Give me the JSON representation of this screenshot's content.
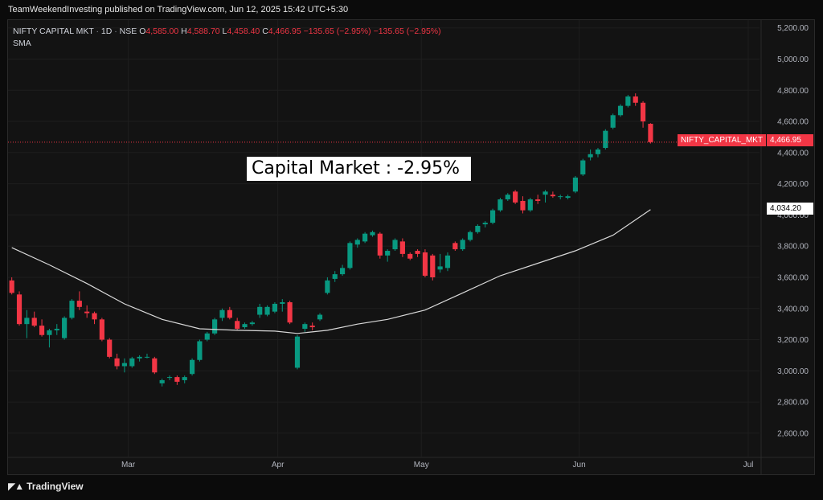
{
  "header": {
    "published": "TeamWeekendInvesting published on TradingView.com, Jun 12, 2025 15:42 UTC+5:30"
  },
  "legend": {
    "symbol": "NIFTY CAPITAL MKT",
    "interval": "1D",
    "exchange": "NSE",
    "open_label": "O",
    "open": "4,585.00",
    "high_label": "H",
    "high": "4,588.70",
    "low_label": "L",
    "low": "4,458.40",
    "close_label": "C",
    "close": "4,466.95",
    "change": "−135.65 (−2.95%)",
    "change2": "−135.65 (−2.95%)",
    "sma_label": "SMA"
  },
  "annotation": {
    "text": "Capital Market : -2.95%"
  },
  "price_tags": {
    "symbol_tag": "NIFTY_CAPITAL_MKT",
    "last_price": "4,466.95",
    "sma_value": "4,034.20"
  },
  "footer": {
    "brand": "TradingView"
  },
  "colors": {
    "up": "#089981",
    "down": "#f23645",
    "sma": "#d9d9d9",
    "grid": "#1e1e1e",
    "axis_text": "#b2b5be"
  },
  "chart_data": {
    "type": "candlestick",
    "title": "",
    "ylim": [
      2450,
      5250
    ],
    "y_ticks": [
      2600,
      2800,
      3000,
      3200,
      3400,
      3600,
      3800,
      4000,
      4200,
      4400,
      4600,
      4800,
      5000,
      5200
    ],
    "y_tick_labels": [
      "2,600.00",
      "2,800.00",
      "3,000.00",
      "3,200.00",
      "3,400.00",
      "3,600.00",
      "3,800.00",
      "4,000.00",
      "4,200.00",
      "4,400.00",
      "4,600.00",
      "4,800.00",
      "5,000.00",
      "5,200.00"
    ],
    "x_labels": [
      {
        "label": "Mar",
        "index": 15.5
      },
      {
        "label": "Apr",
        "index": 35.4
      },
      {
        "label": "May",
        "index": 54.5
      },
      {
        "label": "Jun",
        "index": 75.5
      },
      {
        "label": "Jul",
        "index": 98
      }
    ],
    "x_range": [
      -0.5,
      99.5
    ],
    "last_price_line": 4466.95,
    "candles": [
      [
        3580,
        3600,
        3490,
        3500
      ],
      [
        3490,
        3510,
        3290,
        3300
      ],
      [
        3300,
        3390,
        3210,
        3340
      ],
      [
        3340,
        3380,
        3280,
        3290
      ],
      [
        3290,
        3330,
        3220,
        3230
      ],
      [
        3230,
        3270,
        3150,
        3260
      ],
      [
        3260,
        3300,
        3230,
        3270
      ],
      [
        3210,
        3350,
        3200,
        3340
      ],
      [
        3340,
        3460,
        3330,
        3450
      ],
      [
        3450,
        3510,
        3390,
        3410
      ],
      [
        3380,
        3420,
        3340,
        3370
      ],
      [
        3370,
        3380,
        3300,
        3330
      ],
      [
        3330,
        3340,
        3190,
        3200
      ],
      [
        3200,
        3210,
        3080,
        3090
      ],
      [
        3080,
        3110,
        3010,
        3030
      ],
      [
        3030,
        3080,
        2990,
        3050
      ],
      [
        3030,
        3090,
        3020,
        3080
      ],
      [
        3080,
        3100,
        3060,
        3090
      ],
      [
        3090,
        3110,
        3080,
        3090
      ],
      [
        3080,
        3090,
        2980,
        2990
      ],
      [
        2920,
        2950,
        2900,
        2940
      ],
      [
        2960,
        2970,
        2940,
        2960
      ],
      [
        2960,
        2970,
        2910,
        2930
      ],
      [
        2940,
        2970,
        2920,
        2960
      ],
      [
        2980,
        3080,
        2970,
        3070
      ],
      [
        3070,
        3200,
        3060,
        3190
      ],
      [
        3200,
        3250,
        3190,
        3240
      ],
      [
        3240,
        3340,
        3230,
        3330
      ],
      [
        3340,
        3400,
        3320,
        3390
      ],
      [
        3390,
        3410,
        3330,
        3340
      ],
      [
        3320,
        3340,
        3260,
        3270
      ],
      [
        3280,
        3310,
        3270,
        3300
      ],
      [
        3300,
        3320,
        3290,
        3310
      ],
      [
        3360,
        3430,
        3340,
        3410
      ],
      [
        3360,
        3420,
        3350,
        3410
      ],
      [
        3380,
        3440,
        3370,
        3430
      ],
      [
        3430,
        3460,
        3380,
        3440
      ],
      [
        3440,
        3450,
        3300,
        3310
      ],
      [
        3020,
        3230,
        3010,
        3220
      ],
      [
        3270,
        3310,
        3250,
        3300
      ],
      [
        3290,
        3310,
        3260,
        3280
      ],
      [
        3330,
        3370,
        3320,
        3360
      ],
      [
        3500,
        3600,
        3490,
        3580
      ],
      [
        3590,
        3640,
        3570,
        3620
      ],
      [
        3620,
        3680,
        3610,
        3660
      ],
      [
        3660,
        3830,
        3650,
        3820
      ],
      [
        3810,
        3850,
        3790,
        3840
      ],
      [
        3830,
        3890,
        3820,
        3880
      ],
      [
        3870,
        3900,
        3860,
        3890
      ],
      [
        3880,
        3890,
        3720,
        3740
      ],
      [
        3740,
        3780,
        3700,
        3770
      ],
      [
        3780,
        3850,
        3770,
        3840
      ],
      [
        3830,
        3850,
        3730,
        3750
      ],
      [
        3750,
        3760,
        3710,
        3720
      ],
      [
        3770,
        3780,
        3730,
        3750
      ],
      [
        3760,
        3780,
        3600,
        3610
      ],
      [
        3740,
        3750,
        3580,
        3600
      ],
      [
        3650,
        3750,
        3630,
        3670
      ],
      [
        3660,
        3760,
        3640,
        3740
      ],
      [
        3820,
        3830,
        3770,
        3780
      ],
      [
        3780,
        3850,
        3770,
        3840
      ],
      [
        3840,
        3900,
        3830,
        3890
      ],
      [
        3890,
        3940,
        3880,
        3930
      ],
      [
        3940,
        3960,
        3920,
        3950
      ],
      [
        3950,
        4040,
        3940,
        4030
      ],
      [
        4030,
        4110,
        4020,
        4100
      ],
      [
        4100,
        4140,
        4090,
        4130
      ],
      [
        4150,
        4160,
        4070,
        4080
      ],
      [
        4090,
        4120,
        4010,
        4030
      ],
      [
        4030,
        4110,
        4020,
        4100
      ],
      [
        4100,
        4130,
        4070,
        4090
      ],
      [
        4130,
        4160,
        4080,
        4150
      ],
      [
        4130,
        4150,
        4110,
        4120
      ],
      [
        4120,
        4130,
        4100,
        4120
      ],
      [
        4110,
        4130,
        4100,
        4120
      ],
      [
        4150,
        4250,
        4140,
        4240
      ],
      [
        4260,
        4360,
        4250,
        4350
      ],
      [
        4370,
        4420,
        4350,
        4390
      ],
      [
        4390,
        4430,
        4370,
        4420
      ],
      [
        4430,
        4550,
        4420,
        4540
      ],
      [
        4560,
        4650,
        4550,
        4640
      ],
      [
        4640,
        4710,
        4630,
        4700
      ],
      [
        4700,
        4770,
        4690,
        4760
      ],
      [
        4760,
        4780,
        4700,
        4720
      ],
      [
        4720,
        4730,
        4560,
        4600
      ],
      [
        4585,
        4588.7,
        4458.4,
        4466.95
      ]
    ],
    "candle_x": [
      0,
      1,
      2,
      3,
      4,
      5,
      6,
      7,
      8,
      9,
      10,
      11,
      12,
      13,
      14,
      15,
      16,
      17,
      18,
      19,
      20,
      21,
      22,
      23,
      24,
      25,
      26,
      27,
      28,
      29,
      30,
      31,
      32,
      33,
      34,
      35,
      36,
      37,
      38,
      39,
      40,
      41,
      42,
      43,
      44,
      45,
      46,
      47,
      48,
      49,
      50,
      51,
      52,
      53,
      54,
      55,
      56,
      57,
      58,
      59,
      60,
      61,
      62,
      63,
      64,
      65,
      66,
      67,
      68,
      69,
      70,
      71,
      72,
      73,
      74,
      75,
      76,
      77,
      78,
      79,
      80,
      81,
      82,
      83,
      84,
      85
    ],
    "series": [
      {
        "name": "SMA",
        "x": [
          0,
          5,
          10,
          15,
          20,
          25,
          30,
          35,
          38,
          42,
          46,
          50,
          55,
          60,
          65,
          70,
          75,
          80,
          85
        ],
        "values": [
          3790,
          3680,
          3560,
          3430,
          3330,
          3270,
          3260,
          3255,
          3240,
          3260,
          3300,
          3330,
          3390,
          3500,
          3610,
          3690,
          3770,
          3870,
          4034.2
        ]
      }
    ]
  }
}
